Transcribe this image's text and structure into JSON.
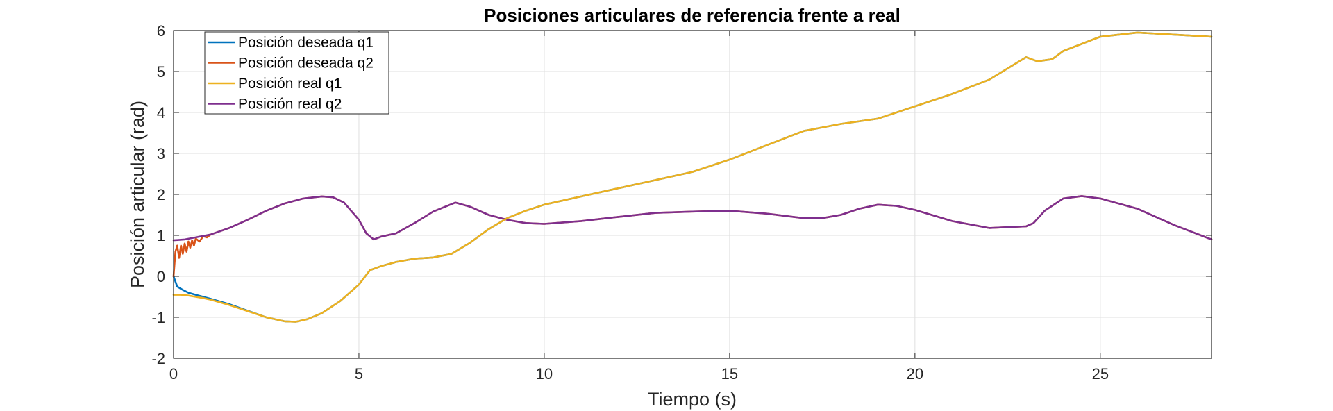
{
  "chart_data": {
    "type": "line",
    "title": "Posiciones articulares de referencia frente a real",
    "xlabel": "Tiempo (s)",
    "ylabel": "Posición articular (rad)",
    "xlim": [
      0,
      28
    ],
    "ylim": [
      -2,
      6
    ],
    "xticks": [
      0,
      5,
      10,
      15,
      20,
      25
    ],
    "yticks": [
      -2,
      -1,
      0,
      1,
      2,
      3,
      4,
      5,
      6
    ],
    "grid": true,
    "legend_position": "top-left",
    "series": [
      {
        "name": "Posición deseada q1",
        "color": "#0072BD",
        "points": [
          [
            0,
            0
          ],
          [
            0.1,
            -0.25
          ],
          [
            0.25,
            -0.33
          ],
          [
            0.4,
            -0.4
          ],
          [
            0.6,
            -0.45
          ],
          [
            0.8,
            -0.5
          ],
          [
            1,
            -0.55
          ],
          [
            1.5,
            -0.68
          ],
          [
            2,
            -0.84
          ],
          [
            2.5,
            -1.0
          ],
          [
            3,
            -1.1
          ],
          [
            3.3,
            -1.11
          ],
          [
            3.6,
            -1.05
          ],
          [
            4,
            -0.9
          ],
          [
            4.5,
            -0.6
          ],
          [
            5,
            -0.2
          ],
          [
            5.3,
            0.15
          ],
          [
            5.6,
            0.25
          ],
          [
            6,
            0.35
          ],
          [
            6.5,
            0.43
          ],
          [
            7,
            0.46
          ],
          [
            7.5,
            0.55
          ],
          [
            8,
            0.82
          ],
          [
            8.5,
            1.15
          ],
          [
            9,
            1.42
          ],
          [
            9.5,
            1.6
          ],
          [
            10,
            1.75
          ],
          [
            11,
            1.95
          ],
          [
            12,
            2.15
          ],
          [
            13,
            2.35
          ],
          [
            14,
            2.55
          ],
          [
            15,
            2.85
          ],
          [
            16,
            3.2
          ],
          [
            17,
            3.55
          ],
          [
            18,
            3.72
          ],
          [
            19,
            3.85
          ],
          [
            20,
            4.15
          ],
          [
            21,
            4.45
          ],
          [
            22,
            4.8
          ],
          [
            23,
            5.35
          ],
          [
            23.3,
            5.25
          ],
          [
            23.7,
            5.3
          ],
          [
            24,
            5.5
          ],
          [
            25,
            5.85
          ],
          [
            26,
            5.95
          ],
          [
            27,
            5.9
          ],
          [
            28,
            5.85
          ]
        ]
      },
      {
        "name": "Posición deseada q2",
        "color": "#D95319",
        "points": [
          [
            0,
            0
          ],
          [
            0.05,
            0.6
          ],
          [
            0.1,
            0.75
          ],
          [
            0.15,
            0.45
          ],
          [
            0.2,
            0.75
          ],
          [
            0.25,
            0.55
          ],
          [
            0.3,
            0.8
          ],
          [
            0.35,
            0.6
          ],
          [
            0.4,
            0.85
          ],
          [
            0.45,
            0.7
          ],
          [
            0.5,
            0.88
          ],
          [
            0.55,
            0.75
          ],
          [
            0.6,
            0.92
          ],
          [
            0.7,
            0.85
          ],
          [
            0.8,
            0.98
          ],
          [
            0.9,
            0.95
          ],
          [
            1,
            1.02
          ],
          [
            1.5,
            1.18
          ],
          [
            2,
            1.38
          ],
          [
            2.5,
            1.6
          ],
          [
            3,
            1.78
          ],
          [
            3.5,
            1.9
          ],
          [
            4,
            1.95
          ],
          [
            4.3,
            1.93
          ],
          [
            4.6,
            1.8
          ],
          [
            5,
            1.38
          ],
          [
            5.2,
            1.05
          ],
          [
            5.4,
            0.9
          ],
          [
            5.6,
            0.97
          ],
          [
            6,
            1.05
          ],
          [
            6.5,
            1.3
          ],
          [
            7,
            1.58
          ],
          [
            7.6,
            1.8
          ],
          [
            8,
            1.7
          ],
          [
            8.5,
            1.5
          ],
          [
            9,
            1.38
          ],
          [
            9.5,
            1.3
          ],
          [
            10,
            1.28
          ],
          [
            11,
            1.35
          ],
          [
            12,
            1.45
          ],
          [
            13,
            1.55
          ],
          [
            14,
            1.58
          ],
          [
            15,
            1.6
          ],
          [
            16,
            1.53
          ],
          [
            17,
            1.42
          ],
          [
            17.5,
            1.42
          ],
          [
            18,
            1.5
          ],
          [
            18.5,
            1.65
          ],
          [
            19,
            1.75
          ],
          [
            19.5,
            1.72
          ],
          [
            20,
            1.62
          ],
          [
            21,
            1.35
          ],
          [
            22,
            1.18
          ],
          [
            22.5,
            1.2
          ],
          [
            23,
            1.22
          ],
          [
            23.2,
            1.3
          ],
          [
            23.5,
            1.6
          ],
          [
            24,
            1.9
          ],
          [
            24.5,
            1.96
          ],
          [
            25,
            1.9
          ],
          [
            26,
            1.65
          ],
          [
            27,
            1.25
          ],
          [
            28,
            0.9
          ]
        ]
      },
      {
        "name": "Posición real q1",
        "color": "#EDB120",
        "points": [
          [
            0,
            -0.45
          ],
          [
            0.2,
            -0.45
          ],
          [
            0.4,
            -0.47
          ],
          [
            0.6,
            -0.5
          ],
          [
            0.8,
            -0.53
          ],
          [
            1,
            -0.57
          ],
          [
            1.5,
            -0.7
          ],
          [
            2,
            -0.85
          ],
          [
            2.5,
            -1.0
          ],
          [
            3,
            -1.1
          ],
          [
            3.3,
            -1.11
          ],
          [
            3.6,
            -1.05
          ],
          [
            4,
            -0.9
          ],
          [
            4.5,
            -0.6
          ],
          [
            5,
            -0.2
          ],
          [
            5.3,
            0.15
          ],
          [
            5.6,
            0.25
          ],
          [
            6,
            0.35
          ],
          [
            6.5,
            0.43
          ],
          [
            7,
            0.46
          ],
          [
            7.5,
            0.55
          ],
          [
            8,
            0.82
          ],
          [
            8.5,
            1.15
          ],
          [
            9,
            1.42
          ],
          [
            9.5,
            1.6
          ],
          [
            10,
            1.75
          ],
          [
            11,
            1.95
          ],
          [
            12,
            2.15
          ],
          [
            13,
            2.35
          ],
          [
            14,
            2.55
          ],
          [
            15,
            2.85
          ],
          [
            16,
            3.2
          ],
          [
            17,
            3.55
          ],
          [
            18,
            3.72
          ],
          [
            19,
            3.85
          ],
          [
            20,
            4.15
          ],
          [
            21,
            4.45
          ],
          [
            22,
            4.8
          ],
          [
            23,
            5.35
          ],
          [
            23.3,
            5.25
          ],
          [
            23.7,
            5.3
          ],
          [
            24,
            5.5
          ],
          [
            25,
            5.85
          ],
          [
            26,
            5.95
          ],
          [
            27,
            5.9
          ],
          [
            28,
            5.85
          ]
        ]
      },
      {
        "name": "Posición real q2",
        "color": "#7E2F8E",
        "points": [
          [
            0,
            0.88
          ],
          [
            0.3,
            0.9
          ],
          [
            0.6,
            0.95
          ],
          [
            1,
            1.02
          ],
          [
            1.5,
            1.18
          ],
          [
            2,
            1.38
          ],
          [
            2.5,
            1.6
          ],
          [
            3,
            1.78
          ],
          [
            3.5,
            1.9
          ],
          [
            4,
            1.95
          ],
          [
            4.3,
            1.93
          ],
          [
            4.6,
            1.8
          ],
          [
            5,
            1.38
          ],
          [
            5.2,
            1.05
          ],
          [
            5.4,
            0.9
          ],
          [
            5.6,
            0.97
          ],
          [
            6,
            1.05
          ],
          [
            6.5,
            1.3
          ],
          [
            7,
            1.58
          ],
          [
            7.6,
            1.8
          ],
          [
            8,
            1.7
          ],
          [
            8.5,
            1.5
          ],
          [
            9,
            1.38
          ],
          [
            9.5,
            1.3
          ],
          [
            10,
            1.28
          ],
          [
            11,
            1.35
          ],
          [
            12,
            1.45
          ],
          [
            13,
            1.55
          ],
          [
            14,
            1.58
          ],
          [
            15,
            1.6
          ],
          [
            16,
            1.53
          ],
          [
            17,
            1.42
          ],
          [
            17.5,
            1.42
          ],
          [
            18,
            1.5
          ],
          [
            18.5,
            1.65
          ],
          [
            19,
            1.75
          ],
          [
            19.5,
            1.72
          ],
          [
            20,
            1.62
          ],
          [
            21,
            1.35
          ],
          [
            22,
            1.18
          ],
          [
            22.5,
            1.2
          ],
          [
            23,
            1.22
          ],
          [
            23.2,
            1.3
          ],
          [
            23.5,
            1.6
          ],
          [
            24,
            1.9
          ],
          [
            24.5,
            1.96
          ],
          [
            25,
            1.9
          ],
          [
            26,
            1.65
          ],
          [
            27,
            1.25
          ],
          [
            28,
            0.9
          ]
        ]
      }
    ]
  }
}
